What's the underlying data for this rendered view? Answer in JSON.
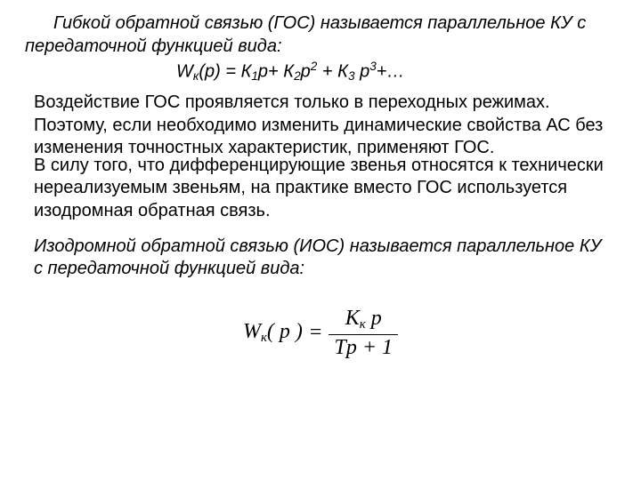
{
  "colors": {
    "background": "#ffffff",
    "text": "#000000",
    "rule": "#000000"
  },
  "typography": {
    "body_family": "Arial",
    "body_size_pt": 15,
    "formula_family": "Times New Roman",
    "formula_size_pt": 18
  },
  "def_gos_1": "Гибкой обратной связью (ГОС) называется параллельное КУ с передаточной функцией вида:",
  "gos_formula": {
    "lhs_W": "W",
    "lhs_sub": "к",
    "lhs_arg": "(p) = ",
    "K": "К",
    "k1_sub": "1",
    "k2_sub": "2",
    "k3_sub": "3",
    "p": "p",
    "plus": "+ ",
    "p2_sup": "2",
    "p3_sup": "3",
    "tail": "+…"
  },
  "para_effect": "Воздействие ГОС проявляется только в переходных режимах. Поэтому, если необходимо изменить динамические свойства АС без изменения точностных характеристик, применяют ГОС.",
  "para_diff": "В силу того, что дифференцирующие звенья относятся к технически нереализуемым звеньям, на практике вместо ГОС используется изодромная обратная связь.",
  "def_ios": "Изодромной обратной связью (ИОС) называется параллельное КУ с передаточной функцией вида:",
  "ios_formula": {
    "W": "W",
    "W_sub": "к",
    "arg_open": "( ",
    "arg_p": "p",
    "arg_close": " )",
    "eq": "=",
    "num_K": "К",
    "num_K_sub": "к",
    "num_space": " ",
    "num_p": "p",
    "den_T": "T",
    "den_p": "p",
    "den_plus": " + ",
    "den_one": "1"
  }
}
